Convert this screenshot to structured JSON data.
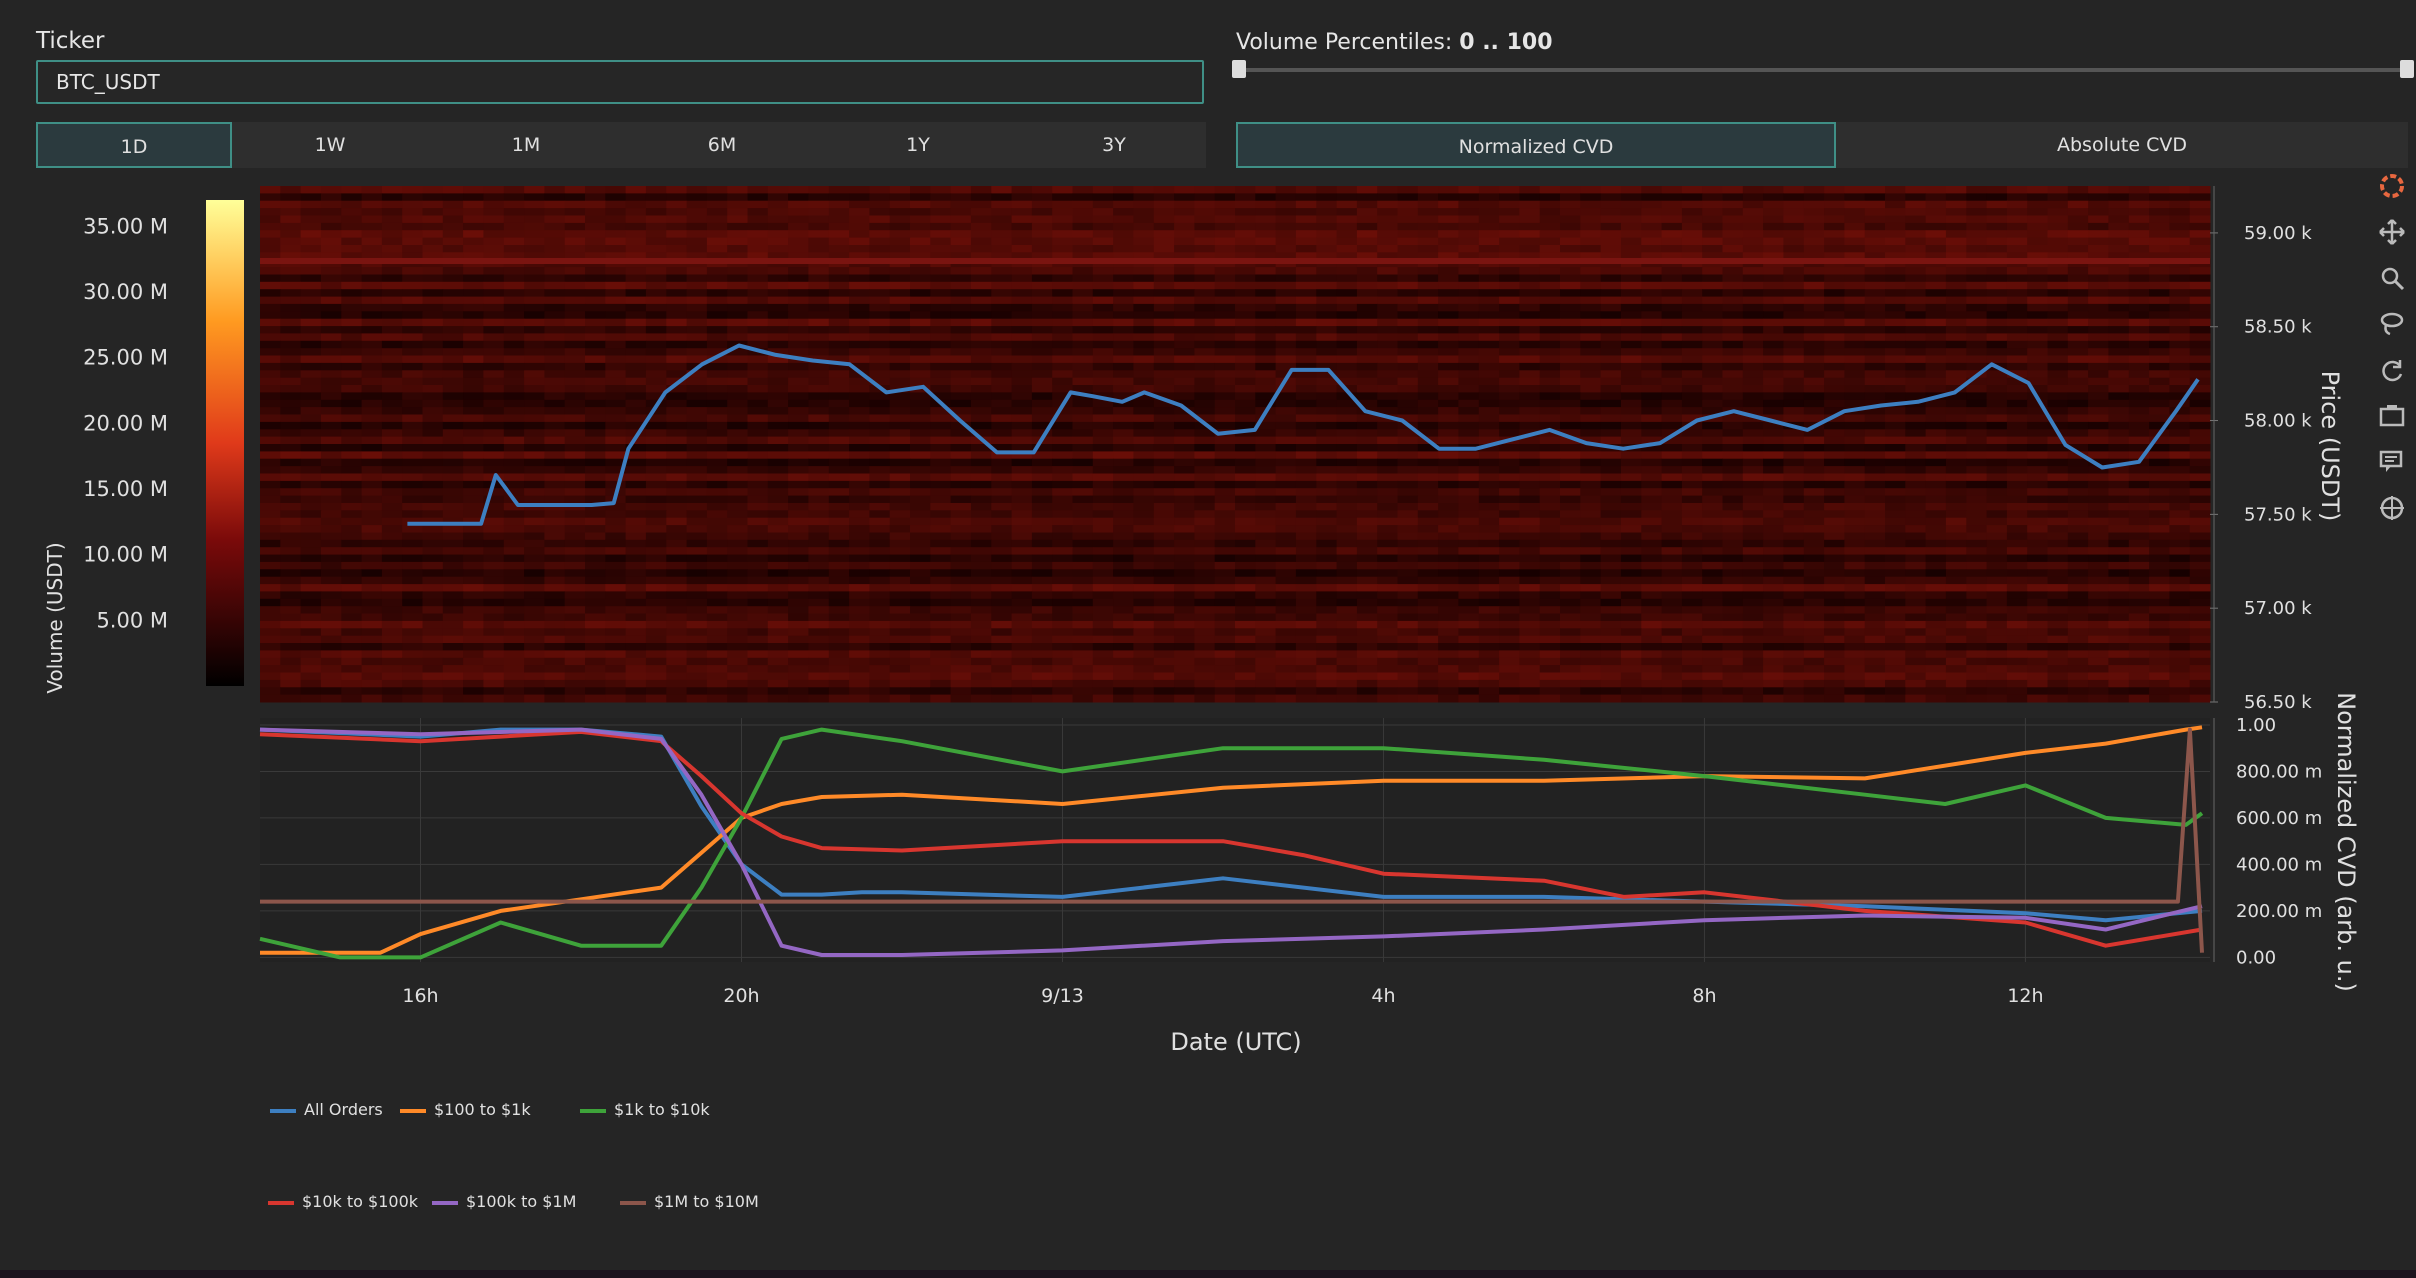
{
  "ticker": {
    "label": "Ticker",
    "value": "BTC_USDT"
  },
  "ranges": [
    "1D",
    "1W",
    "1M",
    "6M",
    "1Y",
    "3Y"
  ],
  "active_range": "1D",
  "volume_percentiles": {
    "label": "Volume Percentiles:",
    "value": "0 .. 100",
    "min": 0,
    "max": 100
  },
  "cvd_modes": [
    "Normalized CVD",
    "Absolute CVD"
  ],
  "active_cvd_mode": "Normalized CVD",
  "modebar_icons": [
    "plotly-logo-icon",
    "pan-icon",
    "zoom-icon",
    "lasso-icon",
    "reset-icon",
    "camera-icon",
    "compare-hover-icon",
    "spike-lines-icon"
  ],
  "colors": {
    "accent": "#3f8f86",
    "All Orders": "#3d7fc1",
    "$100 to $1k": "#ff8a28",
    "$1k to $10k": "#3ea33a",
    "$10k to $100k": "#d8362f",
    "$100k to $1M": "#9467c4",
    "$1M to $10M": "#8c564b"
  },
  "chart_data": [
    {
      "type": "heatmap",
      "colorbar": {
        "title": "Volume (USDT)",
        "ticks": [
          "5.00 M",
          "10.00 M",
          "15.00 M",
          "20.00 M",
          "25.00 M",
          "30.00 M",
          "35.00 M"
        ],
        "range": [
          0,
          37000000
        ],
        "colorscale": "Hot"
      },
      "ylabel": "Price (USDT)",
      "yticks": [
        "56.50 k",
        "57.00 k",
        "57.50 k",
        "58.00 k",
        "58.50 k",
        "59.00 k"
      ],
      "ylim": [
        56500,
        59250
      ],
      "series": [
        {
          "name": "All Orders",
          "x": [
            0,
            0.5,
            1,
            1.2,
            1.5,
            2,
            2.5,
            2.8,
            3,
            3.5,
            4,
            4.5,
            5,
            5.5,
            6,
            6.5,
            7,
            7.5,
            8,
            8.5,
            9,
            9.3,
            9.7,
            10,
            10.5,
            11,
            11.5,
            12,
            12.5,
            13,
            13.5,
            14,
            14.5,
            15,
            15.5,
            16,
            16.5,
            17,
            17.5,
            18,
            18.5,
            19,
            19.5,
            20,
            20.5,
            21,
            21.5,
            22,
            22.5,
            23,
            23.5,
            24,
            24.3
          ],
          "y": [
            57450,
            57450,
            57450,
            57710,
            57550,
            57550,
            57550,
            57560,
            57850,
            58150,
            58300,
            58400,
            58350,
            58320,
            58300,
            58150,
            58180,
            58000,
            57830,
            57830,
            58150,
            58130,
            58100,
            58150,
            58080,
            57930,
            57950,
            58270,
            58270,
            58050,
            58000,
            57850,
            57850,
            57900,
            57950,
            57880,
            57850,
            57880,
            58000,
            58050,
            58000,
            57950,
            58050,
            58080,
            58100,
            58150,
            58300,
            58200,
            57870,
            57750,
            57780,
            58050,
            58220
          ]
        }
      ]
    },
    {
      "type": "line",
      "xlabel": "Date (UTC)",
      "ylabel": "Normalized CVD (arb. u.)",
      "categories": [
        "16h",
        "20h",
        "9/13",
        "4h",
        "8h",
        "12h"
      ],
      "yticks": [
        "0.00",
        "200.00 m",
        "400.00 m",
        "600.00 m",
        "800.00 m",
        "1.00"
      ],
      "ylim": [
        -0.02,
        1.03
      ],
      "xlim": [
        -2,
        22.3
      ],
      "series": [
        {
          "name": "All Orders",
          "x": [
            -2,
            0,
            1,
            2,
            3,
            3.5,
            4,
            4.5,
            5,
            5.5,
            6,
            8,
            10,
            12,
            14,
            16,
            18,
            20,
            21,
            22.2
          ],
          "y": [
            0.98,
            0.95,
            0.98,
            0.98,
            0.95,
            0.65,
            0.4,
            0.27,
            0.27,
            0.28,
            0.28,
            0.26,
            0.34,
            0.26,
            0.26,
            0.24,
            0.22,
            0.19,
            0.16,
            0.2
          ]
        },
        {
          "name": "$100 to $1k",
          "x": [
            -2,
            -0.5,
            0,
            1,
            2,
            3,
            3.5,
            4,
            4.5,
            5,
            6,
            8,
            10,
            12,
            14,
            16,
            18,
            20,
            21,
            22,
            22.2
          ],
          "y": [
            0.02,
            0.02,
            0.1,
            0.2,
            0.25,
            0.3,
            0.45,
            0.6,
            0.66,
            0.69,
            0.7,
            0.66,
            0.73,
            0.76,
            0.76,
            0.78,
            0.77,
            0.88,
            0.92,
            0.98,
            0.99
          ]
        },
        {
          "name": "$1k to $10k",
          "x": [
            -2,
            -1,
            0,
            1,
            2,
            3,
            3.5,
            4,
            4.5,
            5,
            6,
            8,
            10,
            12,
            14,
            16,
            17,
            18,
            19,
            20,
            21,
            22,
            22.2
          ],
          "y": [
            0.08,
            0.0,
            0.0,
            0.15,
            0.05,
            0.05,
            0.3,
            0.6,
            0.94,
            0.98,
            0.93,
            0.8,
            0.9,
            0.9,
            0.85,
            0.78,
            0.74,
            0.7,
            0.66,
            0.74,
            0.6,
            0.57,
            0.62
          ]
        },
        {
          "name": "$10k to $100k",
          "x": [
            -2,
            0,
            2,
            3,
            3.5,
            4,
            4.5,
            5,
            6,
            8,
            10,
            11,
            12,
            14,
            15,
            16,
            18,
            20,
            21,
            22.2
          ],
          "y": [
            0.96,
            0.93,
            0.97,
            0.93,
            0.78,
            0.62,
            0.52,
            0.47,
            0.46,
            0.5,
            0.5,
            0.44,
            0.36,
            0.33,
            0.26,
            0.28,
            0.2,
            0.15,
            0.05,
            0.12
          ]
        },
        {
          "name": "$100k to $1M",
          "x": [
            -2,
            0,
            2,
            3,
            3.5,
            4,
            4.5,
            5,
            6,
            8,
            10,
            12,
            14,
            16,
            18,
            20,
            21,
            22.2
          ],
          "y": [
            0.98,
            0.96,
            0.98,
            0.94,
            0.7,
            0.4,
            0.05,
            0.01,
            0.01,
            0.03,
            0.07,
            0.09,
            0.12,
            0.16,
            0.18,
            0.17,
            0.12,
            0.22
          ]
        },
        {
          "name": "$1M to $10M",
          "x": [
            -2,
            0,
            5,
            10,
            15,
            20,
            21.9,
            22.05,
            22.2
          ],
          "y": [
            0.24,
            0.24,
            0.24,
            0.24,
            0.24,
            0.24,
            0.24,
            0.98,
            0.02
          ]
        }
      ]
    }
  ]
}
